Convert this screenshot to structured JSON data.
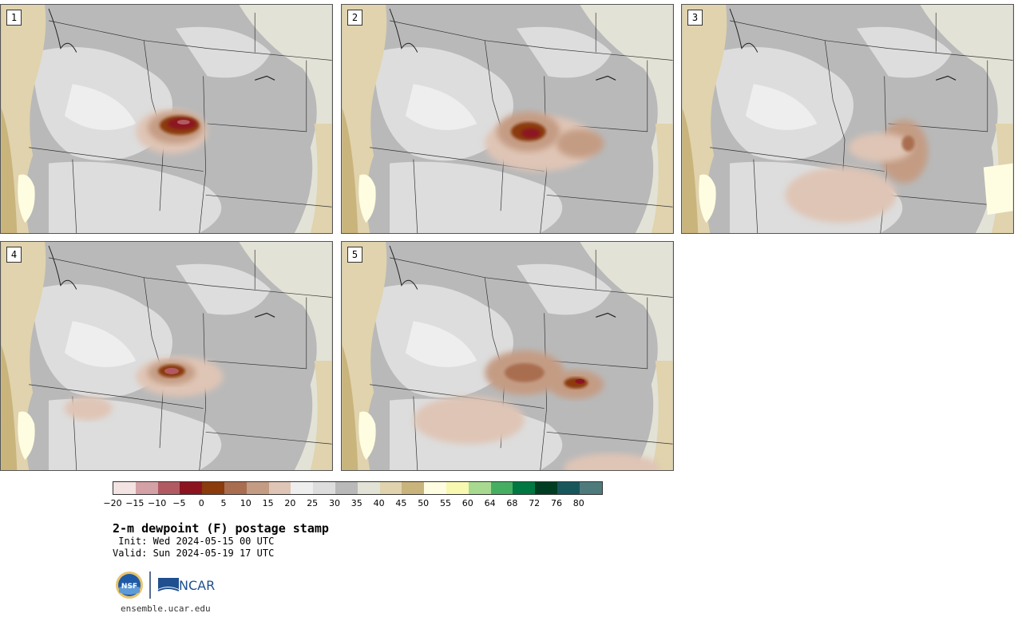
{
  "panels": [
    {
      "label": "1",
      "variant": "a"
    },
    {
      "label": "2",
      "variant": "b"
    },
    {
      "label": "3",
      "variant": "c"
    },
    {
      "label": "4",
      "variant": "d"
    },
    {
      "label": "5",
      "variant": "e"
    }
  ],
  "colorbar": {
    "colors": [
      "#f3e3e3",
      "#d3a1a6",
      "#b15a62",
      "#8c1421",
      "#8b3b0c",
      "#a96e50",
      "#c49c84",
      "#dfc5b5",
      "#eeeeee",
      "#dddddd",
      "#b9b9b9",
      "#e3e2d6",
      "#e0d3ad",
      "#c9b47c",
      "#fefde1",
      "#f8f8b0",
      "#a7da90",
      "#46ae61",
      "#007841",
      "#003d23",
      "#17575c",
      "#4f7a7c"
    ],
    "ticks": [
      "−20",
      "−15",
      "−10",
      "−5",
      "0",
      "5",
      "10",
      "15",
      "20",
      "25",
      "30",
      "35",
      "40",
      "45",
      "50",
      "55",
      "60",
      "64",
      "68",
      "72",
      "76",
      "80"
    ]
  },
  "title": "2-m dewpoint (F) postage stamp",
  "init": " Init: Wed 2024-05-15 00 UTC",
  "valid": "Valid: Sun 2024-05-19 17 UTC",
  "logos": {
    "nsf": "NSF",
    "ncar": "NCAR"
  },
  "site": "ensemble.ucar.edu"
}
